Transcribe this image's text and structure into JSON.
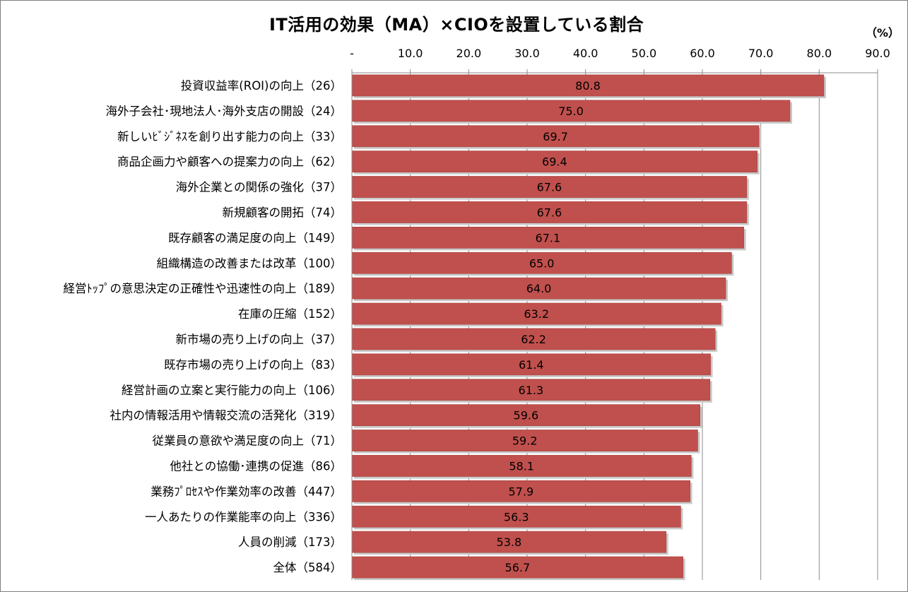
{
  "chart_data": {
    "type": "bar",
    "orientation": "horizontal",
    "title": "IT活用の効果（MA）×CIOを設置している割合",
    "unit": "（%）",
    "xlim": [
      0,
      90
    ],
    "ticks": [
      0,
      10,
      20,
      30,
      40,
      50,
      60,
      70,
      80,
      90
    ],
    "tick_labels": [
      "-",
      "10.0",
      "20.0",
      "30.0",
      "40.0",
      "50.0",
      "60.0",
      "70.0",
      "80.0",
      "90.0"
    ],
    "grid": "vertical",
    "bar_color": "#c0504d",
    "categories": [
      "投資収益率(ROI)の向上（26）",
      "海外子会社･現地法人･海外支店の開設（24）",
      "新しいﾋﾞｼﾞﾈｽを創り出す能力の向上（33）",
      "商品企画力や顧客への提案力の向上（62）",
      "海外企業との関係の強化（37）",
      "新規顧客の開拓（74）",
      "既存顧客の満足度の向上（149）",
      "組織構造の改善または改革（100）",
      "経営ﾄｯﾌﾟの意思決定の正確性や迅速性の向上（189）",
      "在庫の圧縮（152）",
      "新市場の売り上げの向上（37）",
      "既存市場の売り上げの向上（83）",
      "経営計画の立案と実行能力の向上（106）",
      "社内の情報活用や情報交流の活発化（319）",
      "従業員の意欲や満足度の向上（71）",
      "他社との協働･連携の促進（86）",
      "業務ﾌﾟﾛｾｽや作業効率の改善（447）",
      "一人あたりの作業能率の向上（336）",
      "人員の削減（173）",
      "全体（584）"
    ],
    "values": [
      80.8,
      75.0,
      69.7,
      69.4,
      67.6,
      67.6,
      67.1,
      65.0,
      64.0,
      63.2,
      62.2,
      61.4,
      61.3,
      59.6,
      59.2,
      58.1,
      57.9,
      56.3,
      53.8,
      56.7
    ],
    "value_labels": [
      "80.8",
      "75.0",
      "69.7",
      "69.4",
      "67.6",
      "67.6",
      "67.1",
      "65.0",
      "64.0",
      "63.2",
      "62.2",
      "61.4",
      "61.3",
      "59.6",
      "59.2",
      "58.1",
      "57.9",
      "56.3",
      "53.8",
      "56.7"
    ]
  }
}
